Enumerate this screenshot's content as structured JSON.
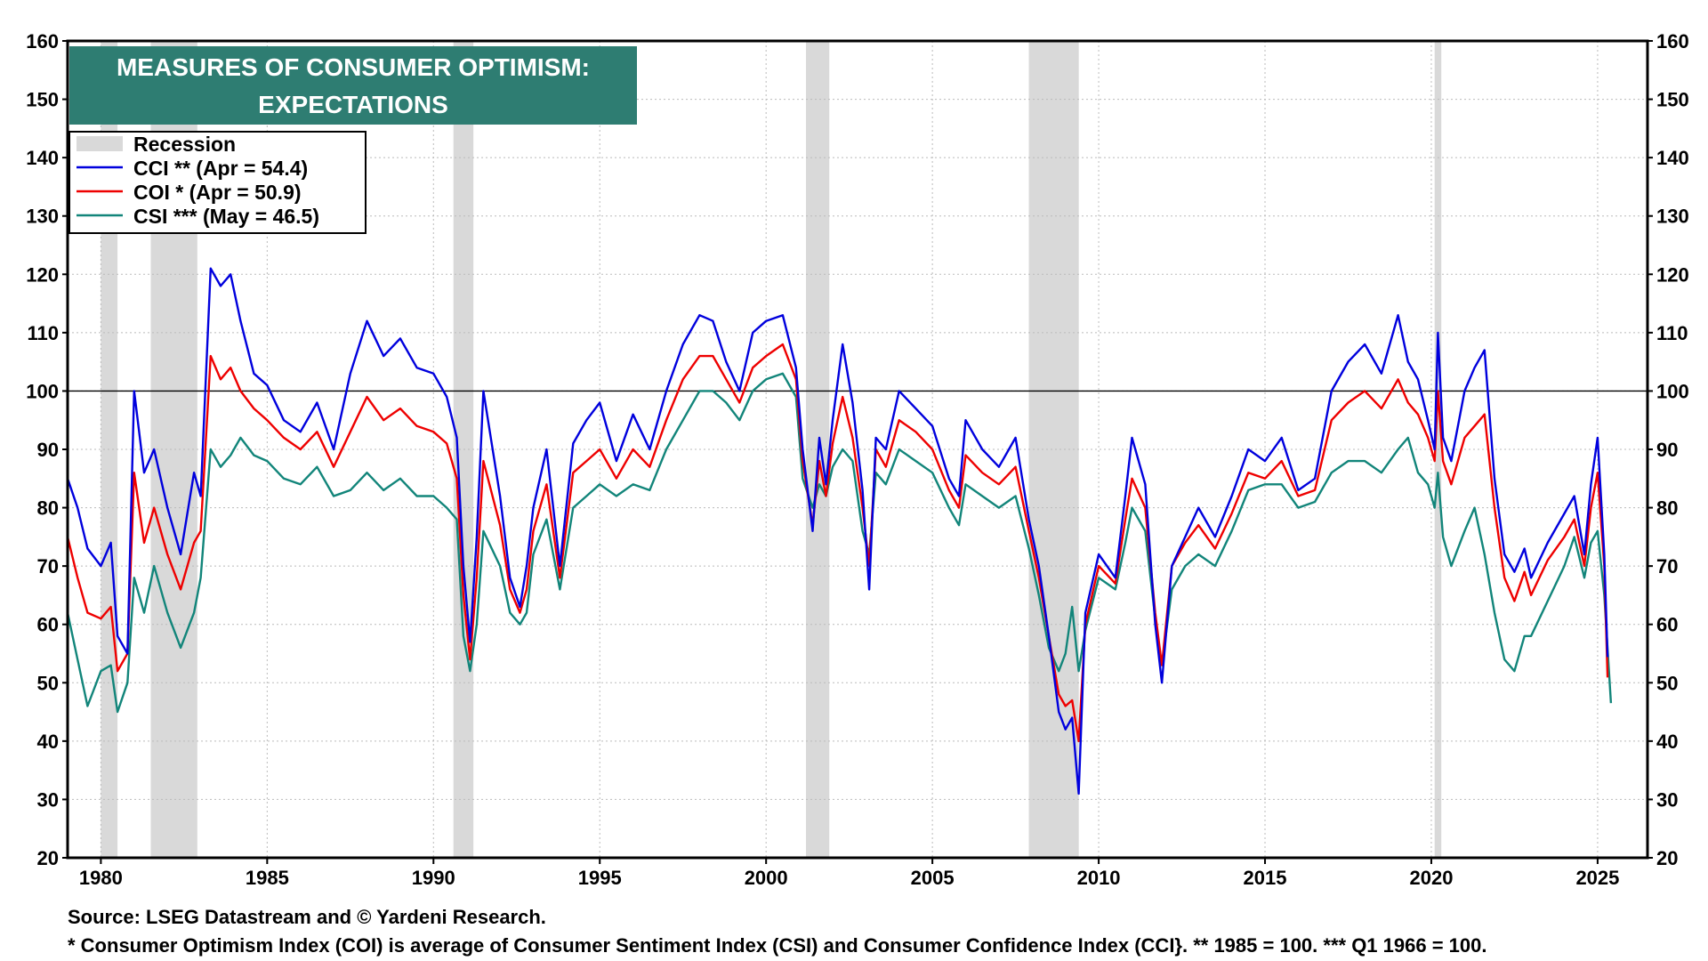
{
  "chart_data": {
    "type": "line",
    "title": "MEASURES OF CONSUMER OPTIMISM:",
    "subtitle": "EXPECTATIONS",
    "xlim": [
      1979.0,
      2026.5
    ],
    "ylim": [
      20,
      160
    ],
    "y_ticks": [
      20,
      30,
      40,
      50,
      60,
      70,
      80,
      90,
      100,
      110,
      120,
      130,
      140,
      150,
      160
    ],
    "x_ticks": [
      1980,
      1985,
      1990,
      1995,
      2000,
      2005,
      2010,
      2015,
      2020,
      2025
    ],
    "reference_line": 100,
    "grid": true,
    "dual_y_axis": true,
    "legend_placement": "top-left",
    "legend": [
      {
        "label": "Recession",
        "kind": "band",
        "color": "#d9d9d9"
      },
      {
        "label": "CCI ** (Apr = 54.4)",
        "kind": "line",
        "color": "#0000dd"
      },
      {
        "label": "COI * (Apr  = 50.9)",
        "kind": "line",
        "color": "#ee0000"
      },
      {
        "label": "CSI *** (May = 46.5)",
        "kind": "line",
        "color": "#12857a"
      }
    ],
    "recessions": [
      [
        1980.0,
        1980.5
      ],
      [
        1981.5,
        1982.9
      ],
      [
        1990.6,
        1991.2
      ],
      [
        2001.2,
        2001.9
      ],
      [
        2007.9,
        2009.4
      ],
      [
        2020.1,
        2020.3
      ]
    ],
    "series": [
      {
        "name": "CCI",
        "color": "#0000dd",
        "x": [
          1979.0,
          1979.3,
          1979.6,
          1980.0,
          1980.3,
          1980.5,
          1980.8,
          1981.0,
          1981.3,
          1981.6,
          1982.0,
          1982.4,
          1982.8,
          1983.0,
          1983.3,
          1983.6,
          1983.9,
          1984.2,
          1984.6,
          1985.0,
          1985.5,
          1986.0,
          1986.5,
          1987.0,
          1987.5,
          1988.0,
          1988.5,
          1989.0,
          1989.5,
          1990.0,
          1990.4,
          1990.7,
          1990.9,
          1991.1,
          1991.3,
          1991.5,
          1992.0,
          1992.3,
          1992.6,
          1992.8,
          1993.0,
          1993.4,
          1993.8,
          1994.2,
          1994.6,
          1995.0,
          1995.5,
          1996.0,
          1996.5,
          1997.0,
          1997.5,
          1998.0,
          1998.4,
          1998.8,
          1999.2,
          1999.6,
          2000.0,
          2000.5,
          2000.9,
          2001.1,
          2001.4,
          2001.6,
          2001.8,
          2002.0,
          2002.3,
          2002.6,
          2002.9,
          2003.1,
          2003.3,
          2003.6,
          2004.0,
          2004.5,
          2005.0,
          2005.5,
          2005.8,
          2006.0,
          2006.5,
          2007.0,
          2007.5,
          2007.9,
          2008.2,
          2008.5,
          2008.8,
          2009.0,
          2009.2,
          2009.4,
          2009.6,
          2010.0,
          2010.5,
          2010.8,
          2011.0,
          2011.4,
          2011.7,
          2011.9,
          2012.2,
          2012.6,
          2013.0,
          2013.5,
          2014.0,
          2014.5,
          2015.0,
          2015.5,
          2016.0,
          2016.5,
          2017.0,
          2017.5,
          2018.0,
          2018.5,
          2019.0,
          2019.3,
          2019.6,
          2019.9,
          2020.1,
          2020.2,
          2020.35,
          2020.6,
          2021.0,
          2021.3,
          2021.6,
          2021.9,
          2022.2,
          2022.5,
          2022.8,
          2023.0,
          2023.5,
          2024.0,
          2024.3,
          2024.6,
          2024.8,
          2025.0,
          2025.2,
          2025.3
        ],
        "values": [
          85,
          80,
          73,
          70,
          74,
          58,
          55,
          100,
          86,
          90,
          80,
          72,
          86,
          82,
          121,
          118,
          120,
          112,
          103,
          101,
          95,
          93,
          98,
          90,
          103,
          112,
          106,
          109,
          104,
          103,
          99,
          92,
          70,
          57,
          75,
          100,
          82,
          68,
          63,
          70,
          80,
          90,
          70,
          91,
          95,
          98,
          88,
          96,
          90,
          100,
          108,
          113,
          112,
          105,
          100,
          110,
          112,
          113,
          104,
          90,
          76,
          92,
          84,
          95,
          108,
          98,
          83,
          66,
          92,
          90,
          100,
          97,
          94,
          85,
          82,
          95,
          90,
          87,
          92,
          78,
          70,
          58,
          45,
          42,
          44,
          31,
          62,
          72,
          68,
          82,
          92,
          84,
          60,
          50,
          70,
          75,
          80,
          75,
          82,
          90,
          88,
          92,
          83,
          85,
          100,
          105,
          108,
          103,
          113,
          105,
          102,
          95,
          90,
          110,
          92,
          88,
          100,
          104,
          107,
          85,
          72,
          69,
          73,
          68,
          74,
          79,
          82,
          72,
          84,
          92,
          72,
          54.4
        ]
      },
      {
        "name": "COI",
        "color": "#ee0000",
        "x": [
          1979.0,
          1979.3,
          1979.6,
          1980.0,
          1980.3,
          1980.5,
          1980.8,
          1981.0,
          1981.3,
          1981.6,
          1982.0,
          1982.4,
          1982.8,
          1983.0,
          1983.3,
          1983.6,
          1983.9,
          1984.2,
          1984.6,
          1985.0,
          1985.5,
          1986.0,
          1986.5,
          1987.0,
          1987.5,
          1988.0,
          1988.5,
          1989.0,
          1989.5,
          1990.0,
          1990.4,
          1990.7,
          1990.9,
          1991.1,
          1991.3,
          1991.5,
          1992.0,
          1992.3,
          1992.6,
          1992.8,
          1993.0,
          1993.4,
          1993.8,
          1994.2,
          1994.6,
          1995.0,
          1995.5,
          1996.0,
          1996.5,
          1997.0,
          1997.5,
          1998.0,
          1998.4,
          1998.8,
          1999.2,
          1999.6,
          2000.0,
          2000.5,
          2000.9,
          2001.1,
          2001.4,
          2001.6,
          2001.8,
          2002.0,
          2002.3,
          2002.6,
          2002.9,
          2003.1,
          2003.3,
          2003.6,
          2004.0,
          2004.5,
          2005.0,
          2005.5,
          2005.8,
          2006.0,
          2006.5,
          2007.0,
          2007.5,
          2007.9,
          2008.2,
          2008.5,
          2008.8,
          2009.0,
          2009.2,
          2009.4,
          2009.6,
          2010.0,
          2010.5,
          2010.8,
          2011.0,
          2011.4,
          2011.7,
          2011.9,
          2012.2,
          2012.6,
          2013.0,
          2013.5,
          2014.0,
          2014.5,
          2015.0,
          2015.5,
          2016.0,
          2016.5,
          2017.0,
          2017.5,
          2018.0,
          2018.5,
          2019.0,
          2019.3,
          2019.6,
          2019.9,
          2020.1,
          2020.2,
          2020.35,
          2020.6,
          2021.0,
          2021.3,
          2021.6,
          2021.9,
          2022.2,
          2022.5,
          2022.8,
          2023.0,
          2023.5,
          2024.0,
          2024.3,
          2024.6,
          2024.8,
          2025.0,
          2025.2,
          2025.3
        ],
        "values": [
          75,
          68,
          62,
          61,
          63,
          52,
          55,
          86,
          74,
          80,
          72,
          66,
          74,
          76,
          106,
          102,
          104,
          100,
          97,
          95,
          92,
          90,
          93,
          87,
          93,
          99,
          95,
          97,
          94,
          93,
          91,
          85,
          65,
          54,
          68,
          88,
          77,
          66,
          62,
          66,
          76,
          84,
          68,
          86,
          88,
          90,
          85,
          90,
          87,
          95,
          102,
          106,
          106,
          102,
          98,
          104,
          106,
          108,
          102,
          88,
          77,
          88,
          82,
          91,
          99,
          92,
          80,
          70,
          90,
          87,
          95,
          93,
          90,
          83,
          80,
          89,
          86,
          84,
          87,
          76,
          68,
          58,
          48,
          46,
          47,
          40,
          60,
          70,
          67,
          78,
          85,
          80,
          62,
          53,
          70,
          74,
          77,
          73,
          79,
          86,
          85,
          88,
          82,
          83,
          95,
          98,
          100,
          97,
          102,
          98,
          96,
          92,
          88,
          100,
          88,
          84,
          92,
          94,
          96,
          80,
          68,
          64,
          69,
          65,
          71,
          75,
          78,
          70,
          80,
          86,
          70,
          50.9
        ]
      },
      {
        "name": "CSI",
        "color": "#12857a",
        "x": [
          1979.0,
          1979.3,
          1979.6,
          1980.0,
          1980.3,
          1980.5,
          1980.8,
          1981.0,
          1981.3,
          1981.6,
          1982.0,
          1982.4,
          1982.8,
          1983.0,
          1983.3,
          1983.6,
          1983.9,
          1984.2,
          1984.6,
          1985.0,
          1985.5,
          1986.0,
          1986.5,
          1987.0,
          1987.5,
          1988.0,
          1988.5,
          1989.0,
          1989.5,
          1990.0,
          1990.4,
          1990.7,
          1990.9,
          1991.1,
          1991.3,
          1991.5,
          1992.0,
          1992.3,
          1992.6,
          1992.8,
          1993.0,
          1993.4,
          1993.8,
          1994.2,
          1994.6,
          1995.0,
          1995.5,
          1996.0,
          1996.5,
          1997.0,
          1997.5,
          1998.0,
          1998.4,
          1998.8,
          1999.2,
          1999.6,
          2000.0,
          2000.5,
          2000.9,
          2001.1,
          2001.4,
          2001.6,
          2001.8,
          2002.0,
          2002.3,
          2002.6,
          2002.9,
          2003.1,
          2003.3,
          2003.6,
          2004.0,
          2004.5,
          2005.0,
          2005.5,
          2005.8,
          2006.0,
          2006.5,
          2007.0,
          2007.5,
          2007.9,
          2008.2,
          2008.5,
          2008.8,
          2009.0,
          2009.2,
          2009.4,
          2009.6,
          2010.0,
          2010.5,
          2010.8,
          2011.0,
          2011.4,
          2011.7,
          2011.9,
          2012.2,
          2012.6,
          2013.0,
          2013.5,
          2014.0,
          2014.5,
          2015.0,
          2015.5,
          2016.0,
          2016.5,
          2017.0,
          2017.5,
          2018.0,
          2018.5,
          2019.0,
          2019.3,
          2019.6,
          2019.9,
          2020.1,
          2020.2,
          2020.35,
          2020.6,
          2021.0,
          2021.3,
          2021.6,
          2021.9,
          2022.2,
          2022.5,
          2022.8,
          2023.0,
          2023.5,
          2024.0,
          2024.3,
          2024.6,
          2024.8,
          2025.0,
          2025.2,
          2025.4
        ],
        "values": [
          62,
          54,
          46,
          52,
          53,
          45,
          50,
          68,
          62,
          70,
          62,
          56,
          62,
          68,
          90,
          87,
          89,
          92,
          89,
          88,
          85,
          84,
          87,
          82,
          83,
          86,
          83,
          85,
          82,
          82,
          80,
          78,
          58,
          52,
          60,
          76,
          70,
          62,
          60,
          62,
          72,
          78,
          66,
          80,
          82,
          84,
          82,
          84,
          83,
          90,
          95,
          100,
          100,
          98,
          95,
          100,
          102,
          103,
          99,
          85,
          80,
          84,
          82,
          87,
          90,
          88,
          76,
          72,
          86,
          84,
          90,
          88,
          86,
          80,
          77,
          84,
          82,
          80,
          82,
          73,
          65,
          56,
          52,
          55,
          63,
          52,
          59,
          68,
          66,
          74,
          80,
          76,
          61,
          53,
          66,
          70,
          72,
          70,
          76,
          83,
          84,
          84,
          80,
          81,
          86,
          88,
          88,
          86,
          90,
          92,
          86,
          84,
          80,
          86,
          75,
          70,
          76,
          80,
          72,
          62,
          54,
          52,
          58,
          58,
          64,
          70,
          75,
          68,
          74,
          76,
          65,
          46.5
        ]
      }
    ]
  },
  "footer": {
    "source": "Source: LSEG Datastream and © Yardeni Research.",
    "note": "* Consumer Optimism Index (COI) is average of Consumer Sentiment Index (CSI) and Consumer Confidence Index (CCI}. ** 1985 = 100.  *** Q1 1966 = 100."
  }
}
